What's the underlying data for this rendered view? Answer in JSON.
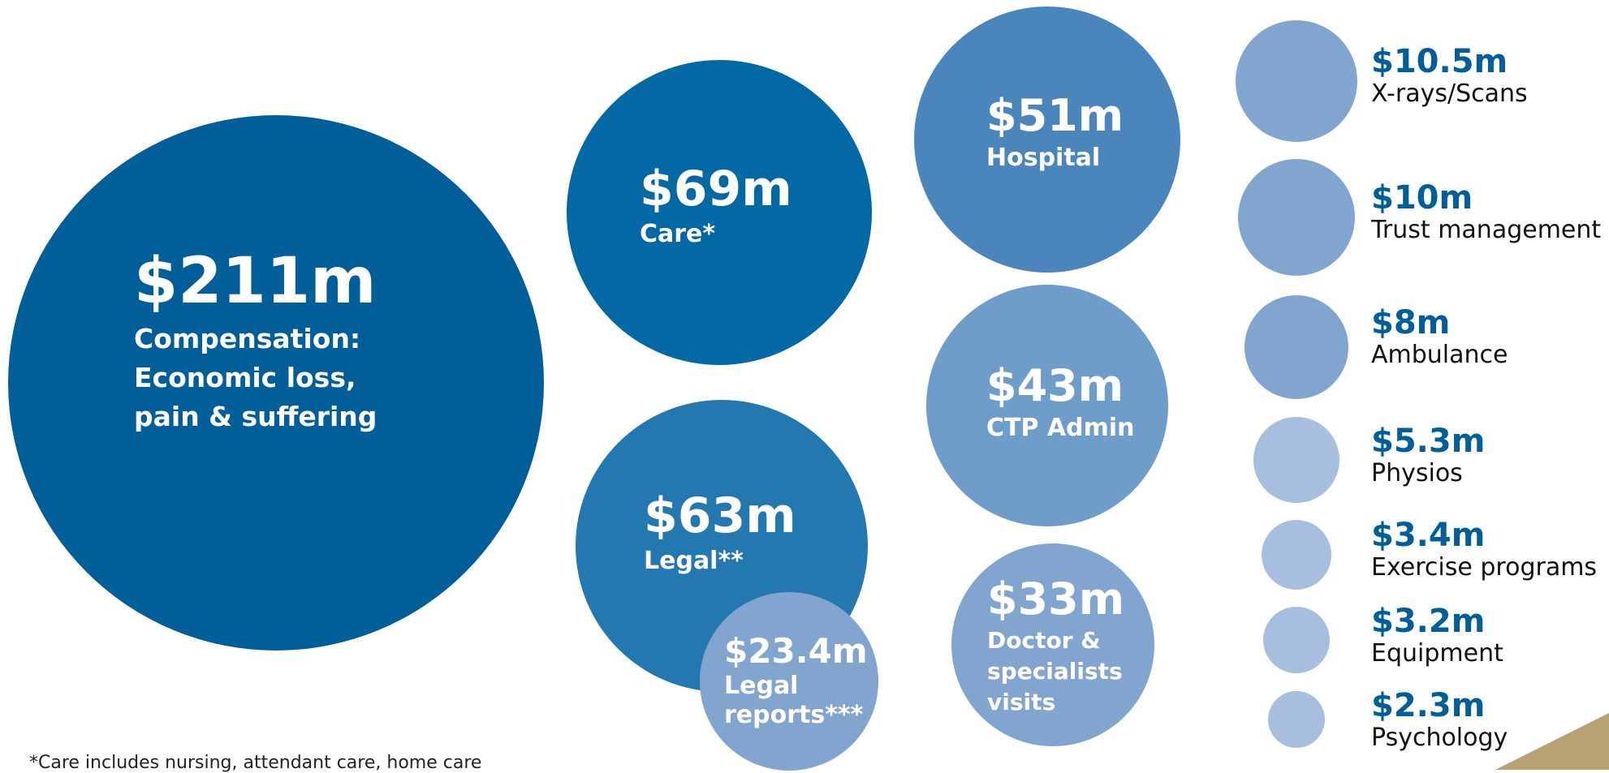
{
  "colors": {
    "dark": "#005e98",
    "mid": "#0369a5",
    "medium": "#2378b0",
    "steel": "#4a86bc",
    "light": "#6f9dca",
    "lighter": "#82a5cf",
    "pale": "#a8bedf",
    "gold": "#b8a271",
    "label_blue": "#005e98"
  },
  "chart_data": {
    "type": "bubble",
    "unit": "$m",
    "items": [
      {
        "value": 211,
        "amount": "$211m",
        "category": "Compensation:\nEconomic loss,\npain & suffering"
      },
      {
        "value": 69,
        "amount": "$69m",
        "category": "Care*"
      },
      {
        "value": 63,
        "amount": "$63m",
        "category": "Legal**"
      },
      {
        "value": 23.4,
        "amount": "$23.4m",
        "category": "Legal\nreports***"
      },
      {
        "value": 51,
        "amount": "$51m",
        "category": "Hospital"
      },
      {
        "value": 43,
        "amount": "$43m",
        "category": "CTP Admin"
      },
      {
        "value": 33,
        "amount": "$33m",
        "category": "Doctor &\nspecialists\nvisits"
      },
      {
        "value": 10.5,
        "amount": "$10.5m",
        "category": "X-rays/Scans"
      },
      {
        "value": 10,
        "amount": "$10m",
        "category": "Trust management"
      },
      {
        "value": 8,
        "amount": "$8m",
        "category": "Ambulance"
      },
      {
        "value": 5.3,
        "amount": "$5.3m",
        "category": "Physios"
      },
      {
        "value": 3.4,
        "amount": "$3.4m",
        "category": "Exercise programs"
      },
      {
        "value": 3.2,
        "amount": "$3.2m",
        "category": "Equipment"
      },
      {
        "value": 2.3,
        "amount": "$2.3m",
        "category": "Psychology"
      }
    ]
  },
  "footnote": "*Care includes nursing, attendant care, home care"
}
